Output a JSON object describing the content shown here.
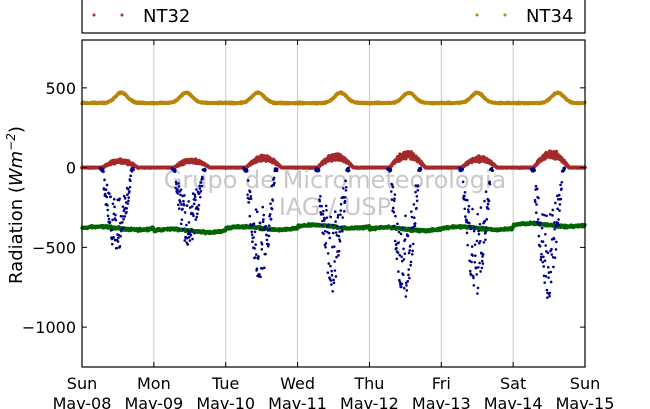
{
  "chart_data": {
    "type": "scatter",
    "title": "",
    "xlabel": "",
    "ylabel": "Radiation (Wm⁻²)",
    "ylabel_prefix": "Radiation (",
    "ylabel_unit": "Wm",
    "ylabel_exp": "−2",
    "ylabel_suffix": ")",
    "ylim": [
      -1250,
      800
    ],
    "yticks": [
      500,
      0,
      -500,
      -1000
    ],
    "ytick_labels": [
      "500",
      "0",
      "−500",
      "−1000"
    ],
    "xlim": [
      0,
      7
    ],
    "xticks": [
      0,
      1,
      2,
      3,
      4,
      5,
      6,
      7
    ],
    "xtick_labels": [
      [
        "Sun",
        "Mav-08"
      ],
      [
        "Mon",
        "Mav-09"
      ],
      [
        "Tue",
        "Mav-10"
      ],
      [
        "Wed",
        "Mav-11"
      ],
      [
        "Thu",
        "Mav-12"
      ],
      [
        "Fri",
        "Mav-13"
      ],
      [
        "Sat",
        "Mav-14"
      ],
      [
        "Sun",
        "Mav-15"
      ]
    ],
    "grid": "vertical",
    "legend": {
      "placement": "top",
      "entries": [
        "NT32",
        "NT34"
      ]
    },
    "watermark": [
      "Grupo de Micrometeorologia",
      "IAG / USP"
    ],
    "series": [
      {
        "name": "NT34",
        "color": "#b8860b",
        "base": 405,
        "amplitude": 65,
        "noise": 8,
        "day_peak": [
          0.55,
          0.45,
          0.45,
          0.6,
          0.55,
          0.5,
          0.62
        ]
      },
      {
        "name": "NT32",
        "color": "#a52a2a",
        "base": 0,
        "day_peak": [
          50,
          55,
          75,
          85,
          100,
          70,
          105
        ],
        "noise": 12
      },
      {
        "name": "",
        "color": "#00008b",
        "day_min": [
          -550,
          -500,
          -720,
          -780,
          -830,
          -800,
          -840
        ],
        "base": 0
      },
      {
        "name": "",
        "color": "#006400",
        "base": -385,
        "noise": 12,
        "trend": [
          -380,
          -395,
          -380,
          -370,
          -385,
          -380,
          -360
        ]
      }
    ]
  }
}
